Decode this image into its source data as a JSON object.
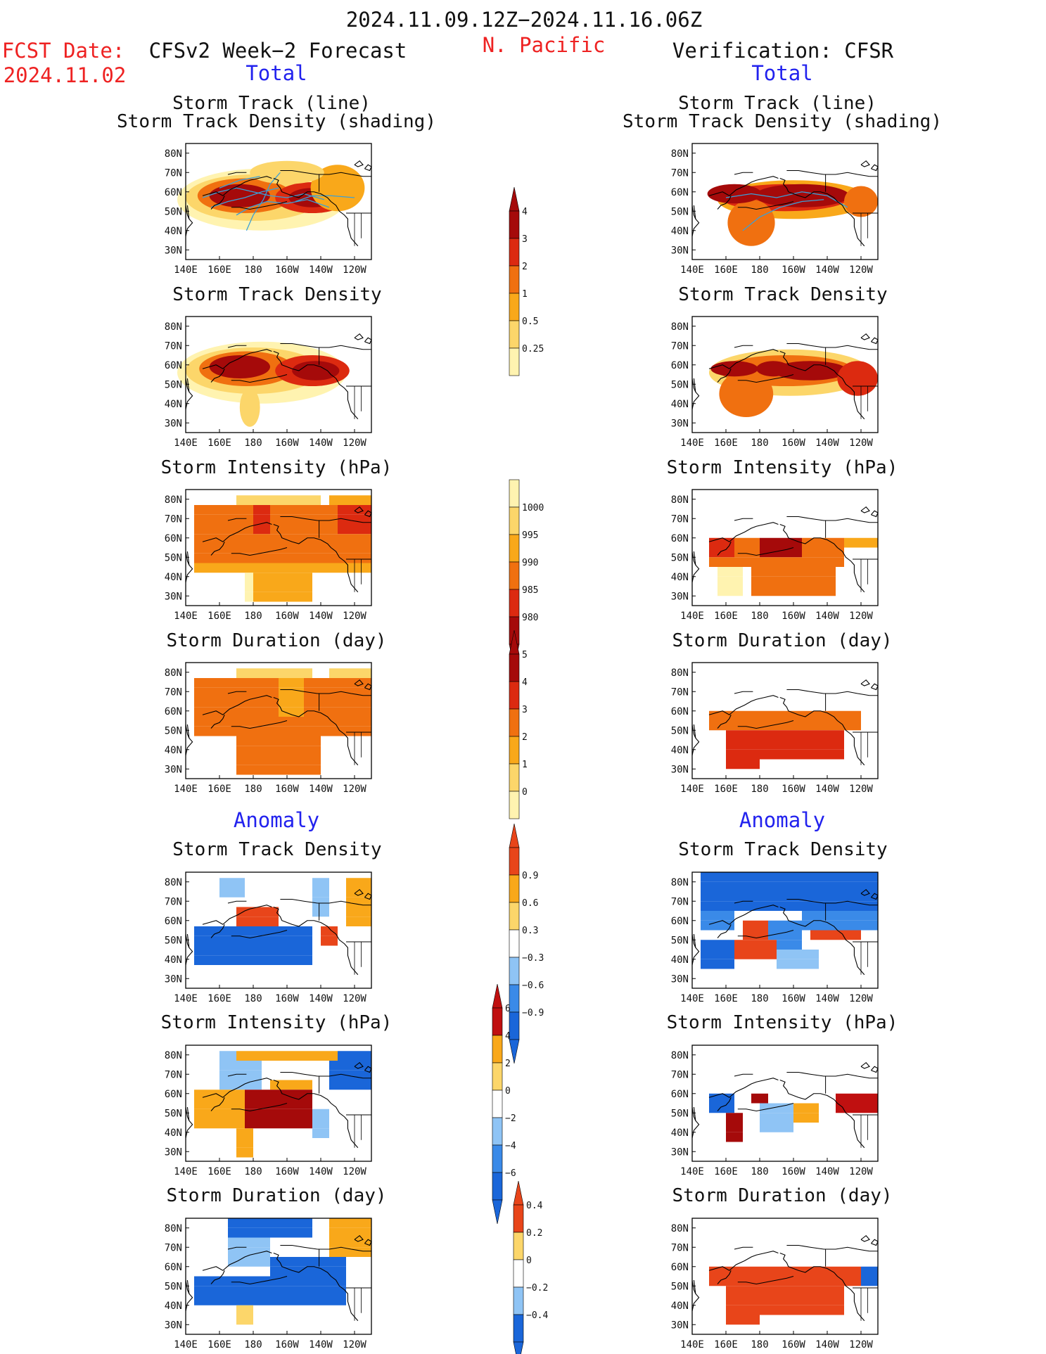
{
  "header": {
    "period": "2024.11.09.12Z−2024.11.16.06Z",
    "region": "N. Pacific",
    "fcst_date_label": "FCST Date:",
    "fcst_date_value": "2024.11.02",
    "left_title": "CFSv2 Week−2 Forecast",
    "right_title": "Verification: CFSR",
    "total_label": "Total",
    "anomaly_label": "Anomaly"
  },
  "axes": {
    "lat_labels": [
      "80N",
      "70N",
      "60N",
      "50N",
      "40N",
      "30N"
    ],
    "lon_labels": [
      "140E",
      "160E",
      "180",
      "160W",
      "140W",
      "120W"
    ]
  },
  "panels": {
    "row1_title_line1": "Storm Track (line)",
    "row1_title_line2": "Storm Track Density (shading)",
    "density": "Storm Track Density",
    "intensity": "Storm Intensity (hPa)",
    "duration": "Storm Duration (day)"
  },
  "colorbars": {
    "density_total": [
      "4",
      "3",
      "2",
      "1",
      "0.5",
      "0.25"
    ],
    "intensity_total": [
      "1000",
      "995",
      "990",
      "985",
      "980"
    ],
    "duration_total": [
      "5",
      "4",
      "3",
      "2",
      "1",
      "0"
    ],
    "density_anom": [
      "0.9",
      "0.6",
      "0.3",
      "−0.3",
      "−0.6",
      "−0.9"
    ],
    "intensity_anom": [
      "6",
      "4",
      "2",
      "0",
      "−2",
      "−4",
      "−6"
    ],
    "duration_anom": [
      "0.4",
      "0.2",
      "0",
      "−0.2",
      "−0.4"
    ]
  },
  "colors": {
    "warm_scale": [
      "#fff3b0",
      "#fcd66a",
      "#f9a81a",
      "#f07010",
      "#dc2a10",
      "#a50a0a"
    ],
    "anom_scale": [
      "#1a66d9",
      "#3a8ae8",
      "#8fc4f5",
      "#ffffff",
      "#fcd66a",
      "#f9a81a",
      "#e8451a"
    ],
    "track_line": "#3aa0d8",
    "title_red": "#ee2222",
    "title_blue": "#2222ee"
  }
}
